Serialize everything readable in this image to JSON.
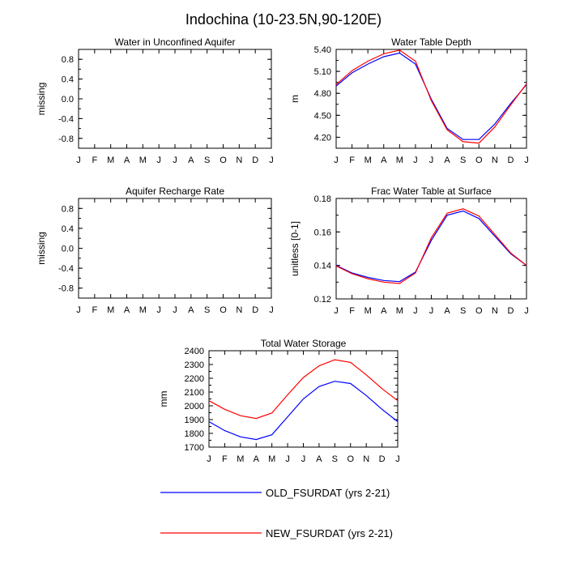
{
  "title": "Indochina (10-23.5N,90-120E)",
  "chart_data": [
    {
      "type": "line",
      "title": "Water in Unconfined Aquifer",
      "xlabel": "",
      "ylabel": "missing",
      "categories": [
        "J",
        "F",
        "M",
        "A",
        "M",
        "J",
        "J",
        "A",
        "S",
        "O",
        "N",
        "D",
        "J"
      ],
      "ylim": [
        -1.0,
        1.0
      ],
      "yticks": [
        "0.8",
        "0.4",
        "0.0",
        "-0.4",
        "-0.8"
      ],
      "series": []
    },
    {
      "type": "line",
      "title": "Water Table Depth",
      "xlabel": "",
      "ylabel": "m",
      "categories": [
        "J",
        "F",
        "M",
        "A",
        "M",
        "J",
        "J",
        "A",
        "S",
        "O",
        "N",
        "D",
        "J"
      ],
      "ylim": [
        4.05,
        5.4
      ],
      "yticks": [
        "5.40",
        "5.10",
        "4.80",
        "4.50",
        "4.20"
      ],
      "series": [
        {
          "name": "OLD_FSURDAT (yrs 2-21)",
          "color": "#0000ff",
          "values": [
            4.9,
            5.08,
            5.2,
            5.3,
            5.35,
            5.2,
            4.72,
            4.32,
            4.17,
            4.17,
            4.38,
            4.66,
            4.92
          ]
        },
        {
          "name": "NEW_FSURDAT (yrs 2-21)",
          "color": "#ff0000",
          "values": [
            4.92,
            5.11,
            5.24,
            5.34,
            5.39,
            5.24,
            4.7,
            4.3,
            4.14,
            4.12,
            4.34,
            4.64,
            4.93
          ]
        }
      ]
    },
    {
      "type": "line",
      "title": "Aquifer Recharge Rate",
      "xlabel": "",
      "ylabel": "missing",
      "categories": [
        "J",
        "F",
        "M",
        "A",
        "M",
        "J",
        "J",
        "A",
        "S",
        "O",
        "N",
        "D",
        "J"
      ],
      "ylim": [
        -1.0,
        1.0
      ],
      "yticks": [
        "0.8",
        "0.4",
        "0.0",
        "-0.4",
        "-0.8"
      ],
      "series": []
    },
    {
      "type": "line",
      "title": "Frac Water Table at Surface",
      "xlabel": "",
      "ylabel": "unitless [0-1]",
      "categories": [
        "J",
        "F",
        "M",
        "A",
        "M",
        "J",
        "J",
        "A",
        "S",
        "O",
        "N",
        "D",
        "J"
      ],
      "ylim": [
        0.12,
        0.18
      ],
      "yticks": [
        "0.18",
        "0.16",
        "0.14",
        "0.12"
      ],
      "series": [
        {
          "name": "OLD_FSURDAT (yrs 2-21)",
          "color": "#0000ff",
          "values": [
            0.14,
            0.1355,
            0.1328,
            0.131,
            0.1303,
            0.136,
            0.155,
            0.17,
            0.1725,
            0.168,
            0.1575,
            0.147,
            0.14
          ]
        },
        {
          "name": "NEW_FSURDAT (yrs 2-21)",
          "color": "#ff0000",
          "values": [
            0.1397,
            0.135,
            0.132,
            0.13,
            0.1292,
            0.1355,
            0.1565,
            0.1712,
            0.1738,
            0.1695,
            0.1585,
            0.1475,
            0.14
          ]
        }
      ]
    },
    {
      "type": "line",
      "title": "Total Water Storage",
      "xlabel": "",
      "ylabel": "mm",
      "categories": [
        "J",
        "F",
        "M",
        "A",
        "M",
        "J",
        "J",
        "A",
        "S",
        "O",
        "N",
        "D",
        "J"
      ],
      "ylim": [
        1700,
        2400
      ],
      "yticks": [
        "2400",
        "2300",
        "2200",
        "2100",
        "2000",
        "1900",
        "1800",
        "1700"
      ],
      "series": [
        {
          "name": "OLD_FSURDAT (yrs 2-21)",
          "color": "#0000ff",
          "values": [
            1885,
            1820,
            1775,
            1755,
            1790,
            1920,
            2050,
            2140,
            2178,
            2162,
            2075,
            1975,
            1885
          ]
        },
        {
          "name": "NEW_FSURDAT (yrs 2-21)",
          "color": "#ff0000",
          "values": [
            2037,
            1975,
            1928,
            1908,
            1948,
            2080,
            2205,
            2290,
            2335,
            2315,
            2225,
            2125,
            2037
          ]
        }
      ]
    }
  ],
  "legend": [
    {
      "label": "OLD_FSURDAT (yrs 2-21)",
      "color": "#0000ff"
    },
    {
      "label": "NEW_FSURDAT (yrs 2-21)",
      "color": "#ff0000"
    }
  ]
}
